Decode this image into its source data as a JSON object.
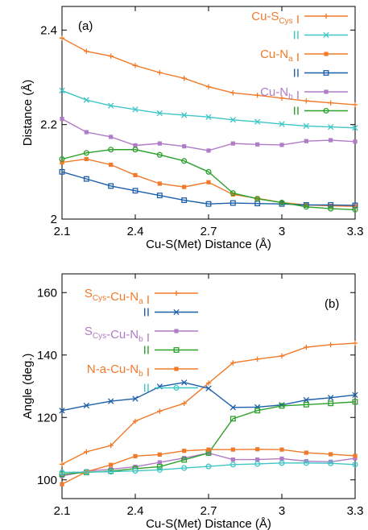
{
  "chart_data": [
    {
      "type": "line",
      "panel_label": "(a)",
      "xlabel": "Cu-S(Met) Distance (Å)",
      "ylabel": "Distance (Å)",
      "xlim": [
        2.1,
        3.3
      ],
      "ylim": [
        2.0,
        2.45
      ],
      "xticks": [
        "2.1",
        "2.4",
        "2.7",
        "3",
        "3.3"
      ],
      "xtick_values": [
        2.1,
        2.4,
        2.7,
        3.0,
        3.3
      ],
      "yticks": [
        "2",
        "2.2",
        "2.4"
      ],
      "ytick_values": [
        2.0,
        2.2,
        2.4
      ],
      "legend_position": "top-right",
      "x": [
        2.1,
        2.2,
        2.3,
        2.4,
        2.5,
        2.6,
        2.7,
        2.8,
        2.9,
        3.0,
        3.1,
        3.2,
        3.3
      ],
      "series": [
        {
          "legend_main": "Cu-S",
          "legend_sub": "Cys",
          "legend_tail": " I",
          "color": "#f07a2a",
          "marker": "plus",
          "values": [
            2.383,
            2.355,
            2.345,
            2.325,
            2.31,
            2.298,
            2.28,
            2.267,
            2.262,
            2.256,
            2.25,
            2.246,
            2.242
          ]
        },
        {
          "legend_main": "II",
          "legend_sub": "",
          "legend_tail": "",
          "color": "#3fc6c6",
          "marker": "cross",
          "values": [
            2.272,
            2.252,
            2.24,
            2.232,
            2.224,
            2.22,
            2.216,
            2.21,
            2.206,
            2.201,
            2.197,
            2.195,
            2.193
          ]
        },
        {
          "legend_main": "Cu-N",
          "legend_sub": "a",
          "legend_tail": " I",
          "color": "#f07a2a",
          "marker": "filledsquare",
          "values": [
            2.12,
            2.127,
            2.115,
            2.093,
            2.075,
            2.068,
            2.078,
            2.052,
            2.044,
            2.035,
            2.03,
            2.028,
            2.027
          ]
        },
        {
          "legend_main": "II",
          "legend_sub": "",
          "legend_tail": "",
          "color": "#1d5fa8",
          "marker": "opensquare",
          "values": [
            2.1,
            2.085,
            2.07,
            2.06,
            2.05,
            2.04,
            2.032,
            2.034,
            2.033,
            2.032,
            2.03,
            2.03,
            2.029
          ]
        },
        {
          "legend_main": "Cu-N",
          "legend_sub": "b",
          "legend_tail": " I",
          "color": "#b07cc6",
          "marker": "filledsquare",
          "values": [
            2.212,
            2.184,
            2.174,
            2.156,
            2.16,
            2.154,
            2.145,
            2.16,
            2.158,
            2.157,
            2.165,
            2.167,
            2.164
          ]
        },
        {
          "legend_main": "II",
          "legend_sub": "",
          "legend_tail": "",
          "color": "#2ca02c",
          "marker": "opencircle",
          "values": [
            2.127,
            2.14,
            2.147,
            2.147,
            2.136,
            2.123,
            2.1,
            2.055,
            2.043,
            2.035,
            2.026,
            2.022,
            2.02
          ]
        }
      ]
    },
    {
      "type": "line",
      "panel_label": "(b)",
      "xlabel": "Cu-S(Met) Distance (Å)",
      "ylabel": "Angle (deg.)",
      "xlim": [
        2.1,
        3.3
      ],
      "ylim": [
        94,
        166
      ],
      "xticks": [
        "2.1",
        "2.4",
        "2.7",
        "3",
        "3.3"
      ],
      "xtick_values": [
        2.1,
        2.4,
        2.7,
        3.0,
        3.3
      ],
      "yticks": [
        "100",
        "120",
        "140",
        "160"
      ],
      "ytick_values": [
        100,
        120,
        140,
        160
      ],
      "legend_position": "top-left",
      "x": [
        2.1,
        2.2,
        2.3,
        2.4,
        2.5,
        2.6,
        2.7,
        2.8,
        2.9,
        3.0,
        3.1,
        3.2,
        3.3
      ],
      "series": [
        {
          "legend_pre": "S",
          "legend_pre_sub": "Cys",
          "legend_main": "-Cu-N",
          "legend_sub": "a",
          "legend_tail": " I",
          "color": "#f07a2a",
          "marker": "plus",
          "values": [
            105,
            109,
            111,
            118.8,
            122,
            124.5,
            131,
            137.5,
            138.7,
            139.7,
            142.5,
            143.3,
            143.8
          ]
        },
        {
          "legend_pre": "",
          "legend_pre_sub": "",
          "legend_main": "II",
          "legend_sub": "",
          "legend_tail": "",
          "color": "#1d5fa8",
          "marker": "cross",
          "values": [
            122.2,
            123.8,
            125.2,
            126,
            129.9,
            131.2,
            129.3,
            123.2,
            123.3,
            124,
            125.6,
            126.3,
            127.2
          ]
        },
        {
          "legend_pre": "S",
          "legend_pre_sub": "Cys",
          "legend_main": "-Cu-N",
          "legend_sub": "b",
          "legend_tail": " I",
          "color": "#b07cc6",
          "marker": "filledsquare",
          "values": [
            101.2,
            102.8,
            103.4,
            104.2,
            105.6,
            107,
            108.6,
            106.5,
            106.5,
            106.8,
            106,
            105.8,
            106.9
          ]
        },
        {
          "legend_pre": "",
          "legend_pre_sub": "",
          "legend_main": "II",
          "legend_sub": "",
          "legend_tail": "",
          "color": "#2ca02c",
          "marker": "opensquare",
          "values": [
            101.8,
            102.4,
            102.8,
            103.6,
            104.2,
            106.4,
            108.6,
            119.6,
            122.2,
            123.7,
            124.1,
            124.5,
            125
          ]
        },
        {
          "legend_pre": "N",
          "legend_pre_sub": "",
          "legend_main": "-a-Cu-N",
          "legend_sub": "b",
          "legend_tail": " I",
          "color": "#f07a2a",
          "marker": "filledsquare",
          "values": [
            98.6,
            102.6,
            104.8,
            107.6,
            108.1,
            109.3,
            109.7,
            109.7,
            109.8,
            109.7,
            108.7,
            108.2,
            107.7
          ]
        },
        {
          "legend_pre": "",
          "legend_pre_sub": "",
          "legend_main": "II",
          "legend_sub": "",
          "legend_tail": "",
          "color": "#3fc6c6",
          "marker": "opencircle",
          "values": [
            102.4,
            102.5,
            102.6,
            102.9,
            103.2,
            103.8,
            104.3,
            104.9,
            105.1,
            105.4,
            105.4,
            105.3,
            104.9
          ]
        }
      ]
    }
  ]
}
